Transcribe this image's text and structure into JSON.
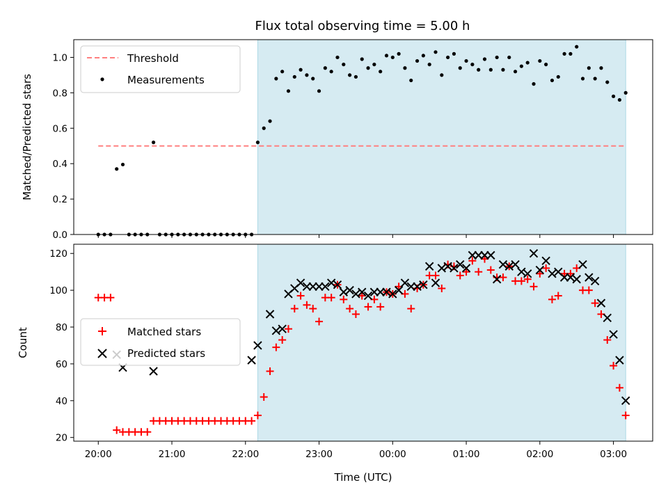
{
  "chart_data": [
    {
      "type": "scatter",
      "title": "Flux total observing time = 5.00 h",
      "ylabel": "Matched/Predicted stars",
      "xlabel": "",
      "xlim": [
        "19:40",
        "03:32"
      ],
      "ylim": [
        0,
        1.1
      ],
      "yticks": [
        0.0,
        0.2,
        0.4,
        0.6,
        0.8,
        1.0
      ],
      "ytick_labels": [
        "0.0",
        "0.2",
        "0.4",
        "0.6",
        "0.8",
        "1.0"
      ],
      "xticks": [
        "20:00",
        "21:00",
        "22:00",
        "23:00",
        "00:00",
        "01:00",
        "02:00",
        "03:00"
      ],
      "xtick_labels_shown": false,
      "shaded_region": {
        "x_start": "22:10",
        "x_end": "03:10",
        "color": "#add8e6"
      },
      "threshold": {
        "name": "Threshold",
        "value": 0.5,
        "x_start": "20:00",
        "x_end": "03:10",
        "color": "#ff8080",
        "style": "dashed"
      },
      "legend": {
        "position": "upper left",
        "entries": [
          "Threshold",
          "Measurements"
        ]
      },
      "series": [
        {
          "name": "Measurements",
          "marker": "dot",
          "color": "#000000",
          "points": [
            [
              "20:00",
              0.0
            ],
            [
              "20:05",
              0.0
            ],
            [
              "20:10",
              0.0
            ],
            [
              "20:15",
              0.37
            ],
            [
              "20:20",
              0.395
            ],
            [
              "20:25",
              0.0
            ],
            [
              "20:30",
              0.0
            ],
            [
              "20:35",
              0.0
            ],
            [
              "20:40",
              0.0
            ],
            [
              "20:45",
              0.52
            ],
            [
              "20:50",
              0.0
            ],
            [
              "20:55",
              0.0
            ],
            [
              "21:00",
              0.0
            ],
            [
              "21:05",
              0.0
            ],
            [
              "21:10",
              0.0
            ],
            [
              "21:15",
              0.0
            ],
            [
              "21:20",
              0.0
            ],
            [
              "21:25",
              0.0
            ],
            [
              "21:30",
              0.0
            ],
            [
              "21:35",
              0.0
            ],
            [
              "21:40",
              0.0
            ],
            [
              "21:45",
              0.0
            ],
            [
              "21:50",
              0.0
            ],
            [
              "21:55",
              0.0
            ],
            [
              "22:00",
              0.0
            ],
            [
              "22:05",
              0.0
            ],
            [
              "22:10",
              0.52
            ],
            [
              "22:15",
              0.6
            ],
            [
              "22:20",
              0.64
            ],
            [
              "22:25",
              0.88
            ],
            [
              "22:30",
              0.92
            ],
            [
              "22:35",
              0.81
            ],
            [
              "22:40",
              0.89
            ],
            [
              "22:45",
              0.93
            ],
            [
              "22:50",
              0.9
            ],
            [
              "22:55",
              0.88
            ],
            [
              "23:00",
              0.81
            ],
            [
              "23:05",
              0.94
            ],
            [
              "23:10",
              0.92
            ],
            [
              "23:15",
              1.0
            ],
            [
              "23:20",
              0.96
            ],
            [
              "23:25",
              0.9
            ],
            [
              "23:30",
              0.89
            ],
            [
              "23:35",
              0.99
            ],
            [
              "23:40",
              0.94
            ],
            [
              "23:45",
              0.96
            ],
            [
              "23:50",
              0.92
            ],
            [
              "23:55",
              1.01
            ],
            [
              "00:00",
              1.0
            ],
            [
              "00:05",
              1.02
            ],
            [
              "00:10",
              0.94
            ],
            [
              "00:15",
              0.87
            ],
            [
              "00:20",
              0.98
            ],
            [
              "00:25",
              1.01
            ],
            [
              "00:30",
              0.96
            ],
            [
              "00:35",
              1.03
            ],
            [
              "00:40",
              0.9
            ],
            [
              "00:45",
              1.0
            ],
            [
              "00:50",
              1.02
            ],
            [
              "00:55",
              0.94
            ],
            [
              "01:00",
              0.98
            ],
            [
              "01:05",
              0.96
            ],
            [
              "01:10",
              0.93
            ],
            [
              "01:15",
              0.99
            ],
            [
              "01:20",
              0.93
            ],
            [
              "01:25",
              1.0
            ],
            [
              "01:30",
              0.93
            ],
            [
              "01:35",
              1.0
            ],
            [
              "01:40",
              0.92
            ],
            [
              "01:45",
              0.95
            ],
            [
              "01:50",
              0.97
            ],
            [
              "01:55",
              0.85
            ],
            [
              "02:00",
              0.98
            ],
            [
              "02:05",
              0.96
            ],
            [
              "02:10",
              0.87
            ],
            [
              "02:15",
              0.89
            ],
            [
              "02:20",
              1.02
            ],
            [
              "02:25",
              1.02
            ],
            [
              "02:30",
              1.06
            ],
            [
              "02:35",
              0.88
            ],
            [
              "02:40",
              0.94
            ],
            [
              "02:45",
              0.88
            ],
            [
              "02:50",
              0.94
            ],
            [
              "02:55",
              0.86
            ],
            [
              "03:00",
              0.78
            ],
            [
              "03:05",
              0.76
            ],
            [
              "03:10",
              0.8
            ]
          ]
        }
      ]
    },
    {
      "type": "scatter",
      "title": "",
      "ylabel": "Count",
      "xlabel": "Time (UTC)",
      "xlim": [
        "19:40",
        "03:32"
      ],
      "ylim": [
        18,
        125
      ],
      "yticks": [
        20,
        40,
        60,
        80,
        100,
        120
      ],
      "ytick_labels": [
        "20",
        "40",
        "60",
        "80",
        "100",
        "120"
      ],
      "xticks": [
        "20:00",
        "21:00",
        "22:00",
        "23:00",
        "00:00",
        "01:00",
        "02:00",
        "03:00"
      ],
      "xtick_labels": [
        "20:00",
        "21:00",
        "22:00",
        "23:00",
        "00:00",
        "01:00",
        "02:00",
        "03:00"
      ],
      "shaded_region": {
        "x_start": "22:10",
        "x_end": "03:10",
        "color": "#add8e6"
      },
      "legend": {
        "position": "center left",
        "entries": [
          "Matched stars",
          "Predicted stars"
        ]
      },
      "series": [
        {
          "name": "Matched stars",
          "marker": "plus",
          "color": "#ff0000",
          "points": [
            [
              "20:00",
              96
            ],
            [
              "20:05",
              96
            ],
            [
              "20:10",
              96
            ],
            [
              "20:15",
              24
            ],
            [
              "20:20",
              23
            ],
            [
              "20:25",
              23
            ],
            [
              "20:30",
              23
            ],
            [
              "20:35",
              23
            ],
            [
              "20:40",
              23
            ],
            [
              "20:45",
              29
            ],
            [
              "20:50",
              29
            ],
            [
              "20:55",
              29
            ],
            [
              "21:00",
              29
            ],
            [
              "21:05",
              29
            ],
            [
              "21:10",
              29
            ],
            [
              "21:15",
              29
            ],
            [
              "21:20",
              29
            ],
            [
              "21:25",
              29
            ],
            [
              "21:30",
              29
            ],
            [
              "21:35",
              29
            ],
            [
              "21:40",
              29
            ],
            [
              "21:45",
              29
            ],
            [
              "21:50",
              29
            ],
            [
              "21:55",
              29
            ],
            [
              "22:00",
              29
            ],
            [
              "22:05",
              29
            ],
            [
              "22:10",
              32
            ],
            [
              "22:15",
              42
            ],
            [
              "22:20",
              56
            ],
            [
              "22:25",
              69
            ],
            [
              "22:30",
              73
            ],
            [
              "22:35",
              79
            ],
            [
              "22:40",
              90
            ],
            [
              "22:45",
              97
            ],
            [
              "22:50",
              92
            ],
            [
              "22:55",
              90
            ],
            [
              "23:00",
              83
            ],
            [
              "23:05",
              96
            ],
            [
              "23:10",
              96
            ],
            [
              "23:15",
              103
            ],
            [
              "23:20",
              95
            ],
            [
              "23:25",
              90
            ],
            [
              "23:30",
              87
            ],
            [
              "23:35",
              97
            ],
            [
              "23:40",
              91
            ],
            [
              "23:45",
              95
            ],
            [
              "23:50",
              91
            ],
            [
              "23:55",
              99
            ],
            [
              "00:00",
              98
            ],
            [
              "00:05",
              102
            ],
            [
              "00:10",
              98
            ],
            [
              "00:15",
              90
            ],
            [
              "00:20",
              101
            ],
            [
              "00:25",
              103
            ],
            [
              "00:30",
              108
            ],
            [
              "00:35",
              108
            ],
            [
              "00:40",
              101
            ],
            [
              "00:45",
              114
            ],
            [
              "00:50",
              113
            ],
            [
              "00:55",
              108
            ],
            [
              "01:00",
              110
            ],
            [
              "01:05",
              116
            ],
            [
              "01:10",
              110
            ],
            [
              "01:15",
              117
            ],
            [
              "01:20",
              111
            ],
            [
              "01:25",
              107
            ],
            [
              "01:30",
              107
            ],
            [
              "01:35",
              113
            ],
            [
              "01:40",
              105
            ],
            [
              "01:45",
              105
            ],
            [
              "01:50",
              106
            ],
            [
              "01:55",
              102
            ],
            [
              "02:00",
              109
            ],
            [
              "02:05",
              112
            ],
            [
              "02:10",
              95
            ],
            [
              "02:15",
              97
            ],
            [
              "02:20",
              109
            ],
            [
              "02:25",
              109
            ],
            [
              "02:30",
              112
            ],
            [
              "02:35",
              100
            ],
            [
              "02:40",
              100
            ],
            [
              "02:45",
              93
            ],
            [
              "02:50",
              87
            ],
            [
              "02:55",
              73
            ],
            [
              "03:00",
              59
            ],
            [
              "03:05",
              47
            ],
            [
              "03:10",
              32
            ]
          ]
        },
        {
          "name": "Predicted stars",
          "marker": "x",
          "color": "#000000",
          "points": [
            [
              "20:15",
              65
            ],
            [
              "20:20",
              58
            ],
            [
              "20:45",
              56
            ],
            [
              "22:05",
              62
            ],
            [
              "22:10",
              70
            ],
            [
              "22:20",
              87
            ],
            [
              "22:25",
              78
            ],
            [
              "22:30",
              79
            ],
            [
              "22:35",
              98
            ],
            [
              "22:40",
              101
            ],
            [
              "22:45",
              104
            ],
            [
              "22:50",
              102
            ],
            [
              "22:55",
              102
            ],
            [
              "23:00",
              102
            ],
            [
              "23:05",
              102
            ],
            [
              "23:10",
              104
            ],
            [
              "23:15",
              103
            ],
            [
              "23:20",
              99
            ],
            [
              "23:25",
              100
            ],
            [
              "23:30",
              98
            ],
            [
              "23:35",
              99
            ],
            [
              "23:40",
              97
            ],
            [
              "23:45",
              99
            ],
            [
              "23:50",
              99
            ],
            [
              "23:55",
              99
            ],
            [
              "00:00",
              98
            ],
            [
              "00:05",
              100
            ],
            [
              "00:10",
              104
            ],
            [
              "00:15",
              102
            ],
            [
              "00:20",
              102
            ],
            [
              "00:25",
              103
            ],
            [
              "00:30",
              113
            ],
            [
              "00:35",
              104
            ],
            [
              "00:40",
              112
            ],
            [
              "00:45",
              113
            ],
            [
              "00:50",
              112
            ],
            [
              "00:55",
              114
            ],
            [
              "01:00",
              112
            ],
            [
              "01:05",
              119
            ],
            [
              "01:10",
              119
            ],
            [
              "01:15",
              119
            ],
            [
              "01:20",
              119
            ],
            [
              "01:25",
              106
            ],
            [
              "01:30",
              114
            ],
            [
              "01:35",
              113
            ],
            [
              "01:40",
              114
            ],
            [
              "01:45",
              110
            ],
            [
              "01:50",
              109
            ],
            [
              "01:55",
              120
            ],
            [
              "02:00",
              111
            ],
            [
              "02:05",
              116
            ],
            [
              "02:10",
              109
            ],
            [
              "02:15",
              110
            ],
            [
              "02:20",
              107
            ],
            [
              "02:25",
              107
            ],
            [
              "02:30",
              106
            ],
            [
              "02:35",
              114
            ],
            [
              "02:40",
              107
            ],
            [
              "02:45",
              105
            ],
            [
              "02:50",
              93
            ],
            [
              "02:55",
              85
            ],
            [
              "03:00",
              76
            ],
            [
              "03:05",
              62
            ],
            [
              "03:10",
              40
            ]
          ]
        }
      ]
    }
  ]
}
